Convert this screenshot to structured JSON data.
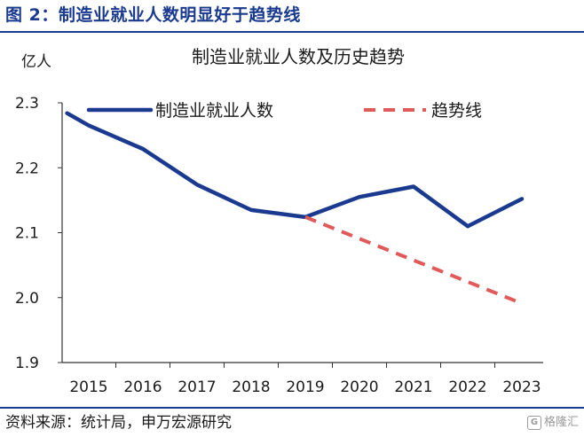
{
  "figure_title": "图 2：制造业就业人数明显好于趋势线",
  "source_text": "资料来源：统计局，申万宏源研究",
  "watermark_text": "格隆汇",
  "colors": {
    "actual": "#1a3a8f",
    "trend": "#e05a5a",
    "axis": "#333333",
    "title": "#1a3a8f"
  },
  "chart_data": {
    "type": "line",
    "title": "制造业就业人数及历史趋势",
    "ylabel": "亿人",
    "xlabel": "",
    "categories": [
      "2015",
      "2016",
      "2017",
      "2018",
      "2019",
      "2020",
      "2021",
      "2022",
      "2023"
    ],
    "ylim": [
      1.9,
      2.3
    ],
    "yticks": [
      "1.9",
      "2.0",
      "2.1",
      "2.2",
      "2.3"
    ],
    "legend_placement": "top",
    "grid": false,
    "series": [
      {
        "name": "制造业就业人数",
        "style": "solid",
        "points": [
          {
            "x": 2014.6,
            "y": 2.284
          },
          {
            "x": 2015,
            "y": 2.265
          },
          {
            "x": 2016,
            "y": 2.229
          },
          {
            "x": 2017,
            "y": 2.174
          },
          {
            "x": 2018,
            "y": 2.135
          },
          {
            "x": 2019,
            "y": 2.124
          },
          {
            "x": 2020,
            "y": 2.155
          },
          {
            "x": 2021,
            "y": 2.171
          },
          {
            "x": 2022,
            "y": 2.11
          },
          {
            "x": 2023,
            "y": 2.152
          }
        ]
      },
      {
        "name": "趋势线",
        "style": "dashed",
        "points": [
          {
            "x": 2019,
            "y": 2.124
          },
          {
            "x": 2023,
            "y": 1.991
          }
        ]
      }
    ]
  }
}
